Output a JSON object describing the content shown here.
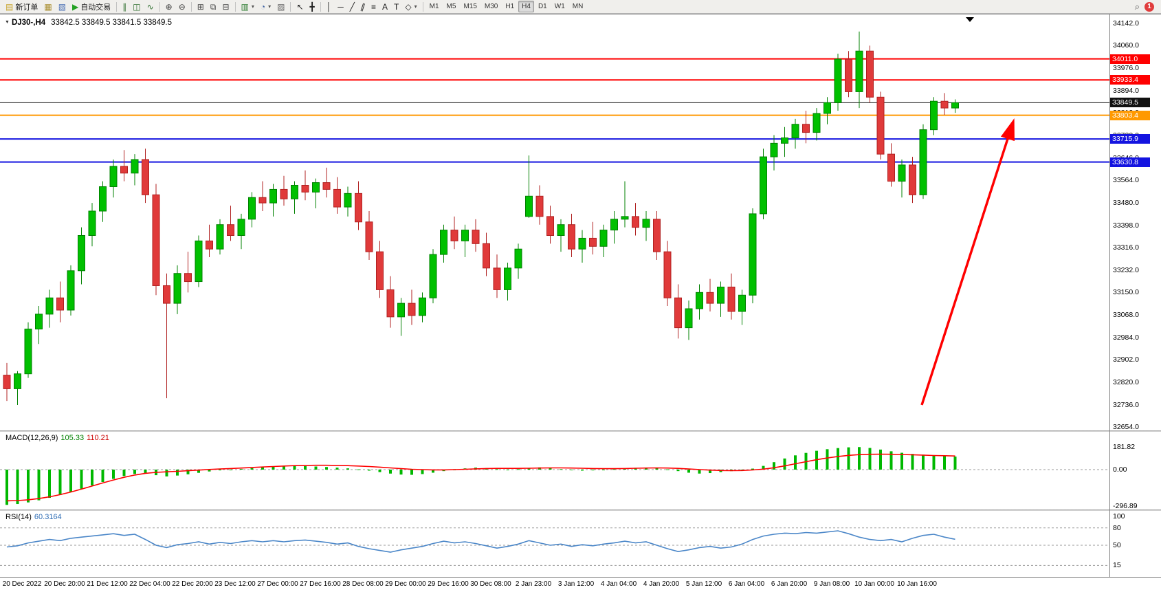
{
  "ui": {
    "title_symbol": "DJ30-,H4",
    "title_ohlc": "33842.5 33849.5 33841.5 33849.5",
    "macd_label": "MACD(12,26,9)",
    "macd_value_1": "105.33",
    "macd_value_2": "110.21",
    "rsi_label": "RSI(14)",
    "rsi_value": "60.3164"
  },
  "toolbar": {
    "groups": [
      {
        "name": "trade",
        "items": [
          {
            "name": "new-order-button",
            "icon": "new-order-icon",
            "glyph": "▤",
            "color": "#c8a42e",
            "label": "新订单"
          },
          {
            "name": "charts-button",
            "icon": "chart-grid-icon",
            "glyph": "▦",
            "color": "#a98e2f"
          },
          {
            "name": "data-window-button",
            "icon": "data-window-icon",
            "glyph": "▧",
            "color": "#4a6fb5"
          },
          {
            "name": "autotrading-button",
            "icon": "autotrading-play-icon",
            "glyph": "▶",
            "color": "#23a123",
            "label": "自动交易"
          }
        ]
      },
      {
        "name": "chart-type",
        "items": [
          {
            "name": "bar-chart-button",
            "icon": "bar-chart-icon",
            "glyph": "∥",
            "color": "#2e6e2e"
          },
          {
            "name": "candlestick-button",
            "icon": "candlestick-icon",
            "glyph": "◫",
            "color": "#2e6e2e"
          },
          {
            "name": "line-chart-button",
            "icon": "line-chart-icon",
            "glyph": "∿",
            "color": "#2e6e2e"
          }
        ]
      },
      {
        "name": "zoom",
        "items": [
          {
            "name": "zoom-in-button",
            "icon": "zoom-in-icon",
            "glyph": "⊕",
            "color": "#444444"
          },
          {
            "name": "zoom-out-button",
            "icon": "zoom-out-icon",
            "glyph": "⊖",
            "color": "#444444"
          }
        ]
      },
      {
        "name": "windows",
        "items": [
          {
            "name": "tile-windows-button",
            "icon": "tile-windows-icon",
            "glyph": "⊞",
            "color": "#444444"
          },
          {
            "name": "cascade-windows-button",
            "icon": "cascade-icon",
            "glyph": "⧉",
            "color": "#444444"
          },
          {
            "name": "arrange-windows-button",
            "icon": "arrange-icon",
            "glyph": "⊟",
            "color": "#444444"
          }
        ]
      },
      {
        "name": "profiles",
        "items": [
          {
            "name": "new-chart-button",
            "icon": "new-chart-icon",
            "glyph": "▥",
            "color": "#2e7d32",
            "dropdown": true
          },
          {
            "name": "chart-profiles-button",
            "icon": "profiles-icon",
            "glyph": "◔",
            "color": "#3b5fa0",
            "dropdown": true
          },
          {
            "name": "strategy-tester-button",
            "icon": "tester-icon",
            "glyph": "▨",
            "color": "#666666"
          }
        ]
      },
      {
        "name": "cursor",
        "items": [
          {
            "name": "cursor-button",
            "icon": "cursor-icon",
            "glyph": "↖",
            "color": "#222222"
          },
          {
            "name": "crosshair-button",
            "icon": "crosshair-icon",
            "glyph": "╋",
            "color": "#222222"
          }
        ]
      },
      {
        "name": "objects",
        "items": [
          {
            "name": "vertical-line-button",
            "icon": "vertical-line-icon",
            "glyph": "│",
            "color": "#222222"
          },
          {
            "name": "horizontal-line-button",
            "icon": "horizontal-line-icon",
            "glyph": "─",
            "color": "#222222"
          },
          {
            "name": "trendline-button",
            "icon": "trendline-icon",
            "glyph": "╱",
            "color": "#222222"
          },
          {
            "name": "channel-button",
            "icon": "channel-icon",
            "glyph": "∥",
            "color": "#222222",
            "rotate": true
          },
          {
            "name": "fibonacci-button",
            "icon": "fibonacci-icon",
            "glyph": "≡",
            "color": "#222222"
          },
          {
            "name": "text-button",
            "icon": "text-icon",
            "glyph": "A",
            "color": "#222222"
          },
          {
            "name": "text-label-button",
            "icon": "text-label-icon",
            "glyph": "T",
            "color": "#222222"
          },
          {
            "name": "shapes-button",
            "icon": "shapes-icon",
            "glyph": "◇",
            "color": "#222222",
            "dropdown": true
          }
        ]
      },
      {
        "name": "timeframes",
        "items": [
          {
            "name": "tf-m1",
            "label": "M1"
          },
          {
            "name": "tf-m5",
            "label": "M5"
          },
          {
            "name": "tf-m15",
            "label": "M15"
          },
          {
            "name": "tf-m30",
            "label": "M30"
          },
          {
            "name": "tf-h1",
            "label": "H1"
          },
          {
            "name": "tf-h4",
            "label": "H4",
            "active": true
          },
          {
            "name": "tf-d1",
            "label": "D1"
          },
          {
            "name": "tf-w1",
            "label": "W1"
          },
          {
            "name": "tf-mn",
            "label": "MN"
          }
        ]
      }
    ],
    "right": {
      "search_icon": "⌕",
      "notification_count": "1"
    }
  },
  "chart_data": {
    "type": "candlestick",
    "symbol": "DJ30-",
    "timeframe": "H4",
    "title": "DJ30-,H4 33842.5 33849.5 33841.5 33849.5",
    "colors": {
      "bull": "#00c000",
      "bull_stroke": "#008000",
      "bear": "#e03a3a",
      "bear_stroke": "#b02020",
      "macd_histogram": "#00b800",
      "macd_signal": "#ff0000",
      "rsi_line": "#4a86c8",
      "annotation_arrow": "#ff0000"
    },
    "price_axis": {
      "max": 34142.0,
      "min": 32654.0,
      "ticks": [
        "34142.0",
        "34060.0",
        "33976.0",
        "33894.0",
        "33812.0",
        "33730.0",
        "33646.0",
        "33564.0",
        "33480.0",
        "33398.0",
        "33316.0",
        "33232.0",
        "33150.0",
        "33068.0",
        "32984.0",
        "32902.0",
        "32820.0",
        "32736.0",
        "32654.0"
      ]
    },
    "levels": [
      {
        "label": "34011.0",
        "price": 34011.0,
        "color": "#ff0000",
        "width": 2,
        "kind": "resistance-line"
      },
      {
        "label": "33933.4",
        "price": 33933.4,
        "color": "#ff0000",
        "width": 2,
        "kind": "resistance-line"
      },
      {
        "label": "33849.5",
        "price": 33849.5,
        "color": "#111111",
        "width": 1,
        "kind": "current-price-line"
      },
      {
        "label": "33803.4",
        "price": 33803.4,
        "color": "#ff9900",
        "width": 2,
        "kind": "pivot-line"
      },
      {
        "label": "33715.9",
        "price": 33715.9,
        "color": "#1414e0",
        "width": 2,
        "kind": "support-line"
      },
      {
        "label": "33630.8",
        "price": 33630.8,
        "color": "#1414e0",
        "width": 2,
        "kind": "support-line"
      }
    ],
    "time_labels": [
      "20 Dec 2022",
      "20 Dec 20:00",
      "21 Dec 12:00",
      "22 Dec 04:00",
      "22 Dec 20:00",
      "23 Dec 12:00",
      "27 Dec 00:00",
      "27 Dec 16:00",
      "28 Dec 08:00",
      "29 Dec 00:00",
      "29 Dec 16:00",
      "30 Dec 08:00",
      "2 Jan 23:00",
      "3 Jan 12:00",
      "4 Jan 04:00",
      "4 Jan 20:00",
      "5 Jan 12:00",
      "6 Jan 04:00",
      "6 Jan 20:00",
      "9 Jan 08:00",
      "10 Jan 00:00",
      "10 Jan 16:00"
    ],
    "candles": [
      [
        32845,
        32890,
        32750,
        32795
      ],
      [
        32795,
        32860,
        32735,
        32850
      ],
      [
        32850,
        33040,
        32835,
        33015
      ],
      [
        33015,
        33100,
        32960,
        33070
      ],
      [
        33070,
        33160,
        33020,
        33130
      ],
      [
        33130,
        33190,
        33040,
        33085
      ],
      [
        33085,
        33250,
        33065,
        33230
      ],
      [
        33230,
        33390,
        33180,
        33360
      ],
      [
        33360,
        33480,
        33320,
        33450
      ],
      [
        33450,
        33560,
        33410,
        33540
      ],
      [
        33540,
        33640,
        33500,
        33615
      ],
      [
        33615,
        33675,
        33560,
        33590
      ],
      [
        33590,
        33660,
        33545,
        33640
      ],
      [
        33640,
        33680,
        33480,
        33510
      ],
      [
        33510,
        33550,
        33140,
        33175
      ],
      [
        33175,
        33220,
        32760,
        33110
      ],
      [
        33110,
        33250,
        33070,
        33220
      ],
      [
        33220,
        33300,
        33150,
        33190
      ],
      [
        33190,
        33360,
        33170,
        33340
      ],
      [
        33340,
        33400,
        33280,
        33310
      ],
      [
        33310,
        33420,
        33290,
        33400
      ],
      [
        33400,
        33470,
        33340,
        33360
      ],
      [
        33360,
        33440,
        33310,
        33420
      ],
      [
        33420,
        33520,
        33390,
        33500
      ],
      [
        33500,
        33560,
        33450,
        33480
      ],
      [
        33480,
        33550,
        33430,
        33530
      ],
      [
        33530,
        33580,
        33470,
        33495
      ],
      [
        33495,
        33560,
        33440,
        33545
      ],
      [
        33545,
        33600,
        33490,
        33520
      ],
      [
        33520,
        33570,
        33460,
        33555
      ],
      [
        33555,
        33610,
        33500,
        33530
      ],
      [
        33530,
        33575,
        33440,
        33465
      ],
      [
        33465,
        33540,
        33430,
        33515
      ],
      [
        33515,
        33560,
        33380,
        33410
      ],
      [
        33410,
        33450,
        33270,
        33300
      ],
      [
        33300,
        33340,
        33130,
        33160
      ],
      [
        33160,
        33210,
        33020,
        33060
      ],
      [
        33060,
        33130,
        32990,
        33110
      ],
      [
        33110,
        33160,
        33030,
        33065
      ],
      [
        33065,
        33150,
        33040,
        33130
      ],
      [
        33130,
        33310,
        33110,
        33290
      ],
      [
        33290,
        33400,
        33260,
        33380
      ],
      [
        33380,
        33430,
        33310,
        33340
      ],
      [
        33340,
        33400,
        33280,
        33380
      ],
      [
        33380,
        33420,
        33300,
        33330
      ],
      [
        33330,
        33370,
        33210,
        33240
      ],
      [
        33240,
        33290,
        33130,
        33160
      ],
      [
        33160,
        33260,
        33120,
        33240
      ],
      [
        33240,
        33330,
        33200,
        33310
      ],
      [
        33430,
        33655,
        33425,
        33505
      ],
      [
        33505,
        33545,
        33400,
        33430
      ],
      [
        33430,
        33470,
        33330,
        33360
      ],
      [
        33360,
        33420,
        33300,
        33400
      ],
      [
        33400,
        33440,
        33280,
        33310
      ],
      [
        33310,
        33380,
        33260,
        33350
      ],
      [
        33350,
        33410,
        33290,
        33320
      ],
      [
        33320,
        33400,
        33280,
        33380
      ],
      [
        33380,
        33450,
        33330,
        33420
      ],
      [
        33420,
        33560,
        33390,
        33430
      ],
      [
        33430,
        33480,
        33360,
        33390
      ],
      [
        33390,
        33450,
        33340,
        33420
      ],
      [
        33420,
        33450,
        33270,
        33300
      ],
      [
        33300,
        33340,
        33100,
        33130
      ],
      [
        33130,
        33180,
        32980,
        33020
      ],
      [
        33020,
        33120,
        32975,
        33090
      ],
      [
        33090,
        33180,
        33050,
        33150
      ],
      [
        33150,
        33200,
        33080,
        33110
      ],
      [
        33110,
        33190,
        33060,
        33170
      ],
      [
        33170,
        33220,
        33050,
        33080
      ],
      [
        33080,
        33160,
        33030,
        33140
      ],
      [
        33140,
        33460,
        33110,
        33440
      ],
      [
        33440,
        33680,
        33420,
        33650
      ],
      [
        33650,
        33730,
        33600,
        33700
      ],
      [
        33700,
        33760,
        33650,
        33720
      ],
      [
        33720,
        33790,
        33680,
        33770
      ],
      [
        33770,
        33820,
        33700,
        33740
      ],
      [
        33740,
        33830,
        33710,
        33810
      ],
      [
        33810,
        33870,
        33770,
        33850
      ],
      [
        33850,
        34030,
        33820,
        34010
      ],
      [
        34010,
        34040,
        33870,
        33890
      ],
      [
        33890,
        34112,
        33830,
        34040
      ],
      [
        34040,
        34060,
        33850,
        33870
      ],
      [
        33870,
        33890,
        33640,
        33660
      ],
      [
        33660,
        33700,
        33540,
        33560
      ],
      [
        33560,
        33640,
        33500,
        33620
      ],
      [
        33620,
        33650,
        33480,
        33510
      ],
      [
        33510,
        33770,
        33495,
        33750
      ],
      [
        33750,
        33870,
        33730,
        33855
      ],
      [
        33855,
        33885,
        33805,
        33830
      ],
      [
        33830,
        33862,
        33812,
        33849.5
      ]
    ],
    "indicators": {
      "macd": {
        "label": "MACD(12,26,9)",
        "current_values": [
          105.33,
          110.21
        ],
        "axis": [
          "181.82",
          "0.00",
          "-296.89"
        ],
        "axis_max": 181.82,
        "axis_min": -296.89,
        "histogram": [
          -285,
          -278,
          -265,
          -248,
          -228,
          -205,
          -180,
          -155,
          -128,
          -100,
          -75,
          -52,
          -35,
          -30,
          -45,
          -55,
          -48,
          -38,
          -26,
          -15,
          -6,
          0,
          6,
          12,
          18,
          24,
          28,
          30,
          28,
          25,
          21,
          16,
          10,
          2,
          -8,
          -20,
          -32,
          -40,
          -42,
          -36,
          -25,
          -12,
          0,
          10,
          16,
          12,
          4,
          -2,
          4,
          14,
          18,
          12,
          4,
          -4,
          -8,
          -6,
          -2,
          4,
          10,
          14,
          16,
          12,
          2,
          -12,
          -25,
          -32,
          -28,
          -20,
          -12,
          -4,
          8,
          30,
          60,
          90,
          115,
          135,
          152,
          165,
          174,
          180,
          182,
          175,
          162,
          148,
          136,
          127,
          121,
          117,
          112,
          105.33
        ],
        "signal": [
          -252,
          -250,
          -244,
          -234,
          -220,
          -202,
          -181,
          -158,
          -133,
          -108,
          -84,
          -62,
          -44,
          -30,
          -22,
          -18,
          -14,
          -9,
          -4,
          1,
          5,
          9,
          13,
          17,
          21,
          25,
          29,
          32,
          34,
          35,
          35,
          34,
          32,
          29,
          25,
          20,
          14,
          8,
          3,
          0,
          -2,
          -2,
          0,
          3,
          6,
          9,
          10,
          10,
          10,
          11,
          13,
          14,
          14,
          13,
          11,
          9,
          8,
          8,
          9,
          11,
          13,
          14,
          13,
          10,
          5,
          0,
          -4,
          -7,
          -8,
          -7,
          -3,
          4,
          15,
          30,
          47,
          64,
          80,
          94,
          106,
          115,
          121,
          124,
          125,
          124,
          122,
          120,
          117,
          114,
          112,
          110.21
        ]
      },
      "rsi": {
        "label": "RSI(14)",
        "current_value": 60.3164,
        "axis": [
          "100",
          "80",
          "50",
          "15"
        ],
        "level_lines": [
          80,
          50,
          15
        ],
        "values": [
          47,
          49,
          54,
          57,
          60,
          58,
          62,
          64,
          66,
          68,
          70,
          67,
          69,
          60,
          50,
          46,
          51,
          53,
          56,
          52,
          55,
          53,
          56,
          58,
          56,
          58,
          56,
          58,
          59,
          57,
          55,
          52,
          54,
          48,
          44,
          41,
          38,
          42,
          45,
          48,
          53,
          57,
          54,
          56,
          53,
          49,
          45,
          48,
          52,
          58,
          54,
          50,
          52,
          48,
          51,
          49,
          52,
          54,
          57,
          54,
          56,
          50,
          44,
          39,
          42,
          46,
          48,
          45,
          47,
          52,
          60,
          66,
          69,
          71,
          70,
          72,
          71,
          73,
          75,
          70,
          64,
          60,
          58,
          60,
          56,
          62,
          67,
          69,
          64,
          60.32
        ]
      }
    },
    "annotations": [
      {
        "type": "arrow",
        "color": "#ff0000",
        "note": "hand-drawn up arrow pointing toward the 33803.4 orange line"
      }
    ],
    "shift_marker": true
  }
}
